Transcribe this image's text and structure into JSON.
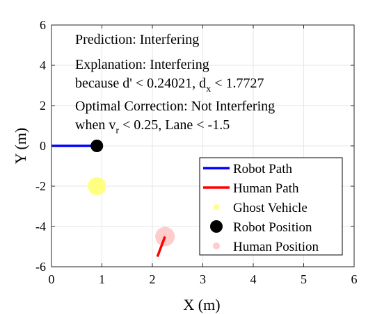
{
  "chart_data": {
    "type": "scatter",
    "xlabel": "X (m)",
    "ylabel": "Y (m)",
    "xlim": [
      0,
      6
    ],
    "ylim": [
      -6,
      6
    ],
    "xticks": [
      0,
      1,
      2,
      3,
      4,
      5,
      6
    ],
    "yticks": [
      -6,
      -4,
      -2,
      0,
      2,
      4,
      6
    ],
    "grid": true,
    "annotations": {
      "prediction": "Prediction: Interfering",
      "explanation_line1": "Explanation: Interfering",
      "explanation_line2_pre": "because d' < 0.24021, d",
      "explanation_line2_sub": "x",
      "explanation_line2_post": " < 1.7727",
      "correction_line1": "Optimal Correction: Not Interfering",
      "correction_line2_pre": "when v",
      "correction_line2_sub": "r",
      "correction_line2_post": " < 0.25, Lane < -1.5"
    },
    "series": [
      {
        "name": "Robot Path",
        "kind": "line",
        "color": "#0000ff",
        "x": [
          0,
          0.9
        ],
        "y": [
          0,
          0
        ]
      },
      {
        "name": "Human Path",
        "kind": "line",
        "color": "#ff0000",
        "x": [
          2.1,
          2.25
        ],
        "y": [
          -5.5,
          -4.5
        ]
      },
      {
        "name": "Ghost Vehicle",
        "kind": "point",
        "color": "#ffff80",
        "x": [
          0.9
        ],
        "y": [
          -2
        ]
      },
      {
        "name": "Robot Position",
        "kind": "point",
        "color": "#000000",
        "x": [
          0.9
        ],
        "y": [
          0
        ]
      },
      {
        "name": "Human Position",
        "kind": "point",
        "color": "#ffcccc",
        "x": [
          2.25
        ],
        "y": [
          -4.5
        ]
      }
    ],
    "legend_placement": "bottom-right"
  }
}
